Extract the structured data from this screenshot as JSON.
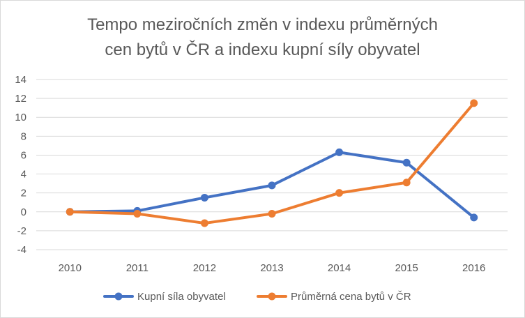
{
  "chart_data": {
    "type": "line",
    "title_line1": "Tempo meziročních změn v indexu průměrných",
    "title_line2": "cen bytů v ČR a indexu kupní síly obyvatel",
    "x": [
      "2010",
      "2011",
      "2012",
      "2013",
      "2014",
      "2015",
      "2016"
    ],
    "ylim": [
      -4,
      14
    ],
    "yticks": [
      -4,
      -2,
      0,
      2,
      4,
      6,
      8,
      10,
      12,
      14
    ],
    "grid": true,
    "legend_position": "bottom",
    "series": [
      {
        "name": "Kupní síla obyvatel",
        "color": "#4472C4",
        "values": [
          0,
          0.1,
          1.5,
          2.8,
          6.3,
          5.2,
          -0.6
        ]
      },
      {
        "name": "Průměrná cena bytů v ČR",
        "color": "#ED7D31",
        "values": [
          0,
          -0.2,
          -1.2,
          -0.2,
          2.0,
          3.1,
          11.5
        ]
      }
    ]
  }
}
